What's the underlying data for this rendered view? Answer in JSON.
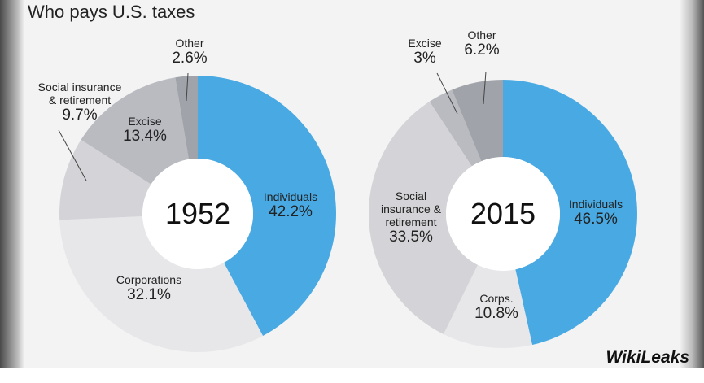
{
  "title": "Who pays U.S. taxes",
  "watermark": "WikiLeaks",
  "chart_data": [
    {
      "type": "pie",
      "center_label": "1952",
      "categories": [
        "Individuals",
        "Corporations",
        "Social insurance\n& retirement",
        "Excise",
        "Other"
      ],
      "values": [
        42.2,
        32.1,
        9.7,
        13.4,
        2.6
      ],
      "value_labels": [
        "42.2%",
        "32.1%",
        "9.7%",
        "13.4%",
        "2.6%"
      ],
      "colors": [
        "#49a9e3",
        "#e7e7ea",
        "#d4d4d8",
        "#b9bbc1",
        "#a0a3a9"
      ]
    },
    {
      "type": "pie",
      "center_label": "2015",
      "categories": [
        "Individuals",
        "Corps.",
        "Social\ninsurance &\nretirement",
        "Excise",
        "Other"
      ],
      "values": [
        46.5,
        10.8,
        33.5,
        3,
        6.2
      ],
      "value_labels": [
        "46.5%",
        "10.8%",
        "33.5%",
        "3%",
        "6.2%"
      ],
      "colors": [
        "#49a9e3",
        "#e7e7ea",
        "#d4d4d8",
        "#b9bbc1",
        "#a0a3a9"
      ]
    }
  ]
}
